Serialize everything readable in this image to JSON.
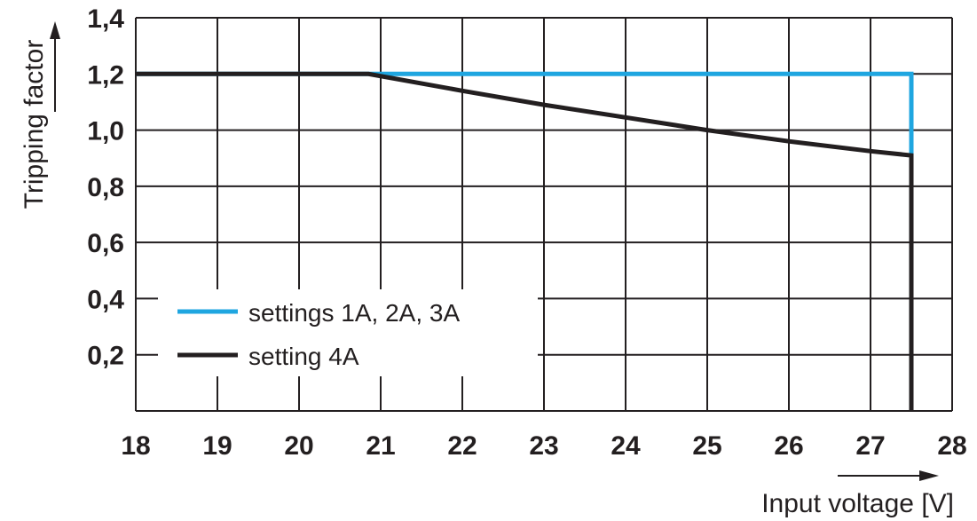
{
  "chart_data": {
    "type": "line",
    "xlabel": "Input voltage [V]",
    "ylabel": "Tripping factor",
    "xlim": [
      18,
      28
    ],
    "ylim": [
      0,
      1.4
    ],
    "x_ticks": [
      "18",
      "19",
      "20",
      "21",
      "22",
      "23",
      "24",
      "25",
      "26",
      "27",
      "28"
    ],
    "y_ticks": [
      "0,2",
      "0,4",
      "0,6",
      "0,8",
      "1,0",
      "1,2",
      "1,4"
    ],
    "grid": true,
    "legend_position": "bottom-left",
    "series": [
      {
        "name": "settings 1A, 2A, 3A",
        "color": "#1fa6e0",
        "x": [
          18,
          27.5,
          27.5
        ],
        "y": [
          1.2,
          1.2,
          0.91
        ]
      },
      {
        "name": "setting 4A",
        "color": "#231f20",
        "x": [
          18,
          20.85,
          22,
          23,
          24,
          25,
          26,
          27,
          27.5,
          27.5
        ],
        "y": [
          1.2,
          1.2,
          1.14,
          1.09,
          1.045,
          1.0,
          0.96,
          0.925,
          0.91,
          0
        ]
      }
    ]
  }
}
